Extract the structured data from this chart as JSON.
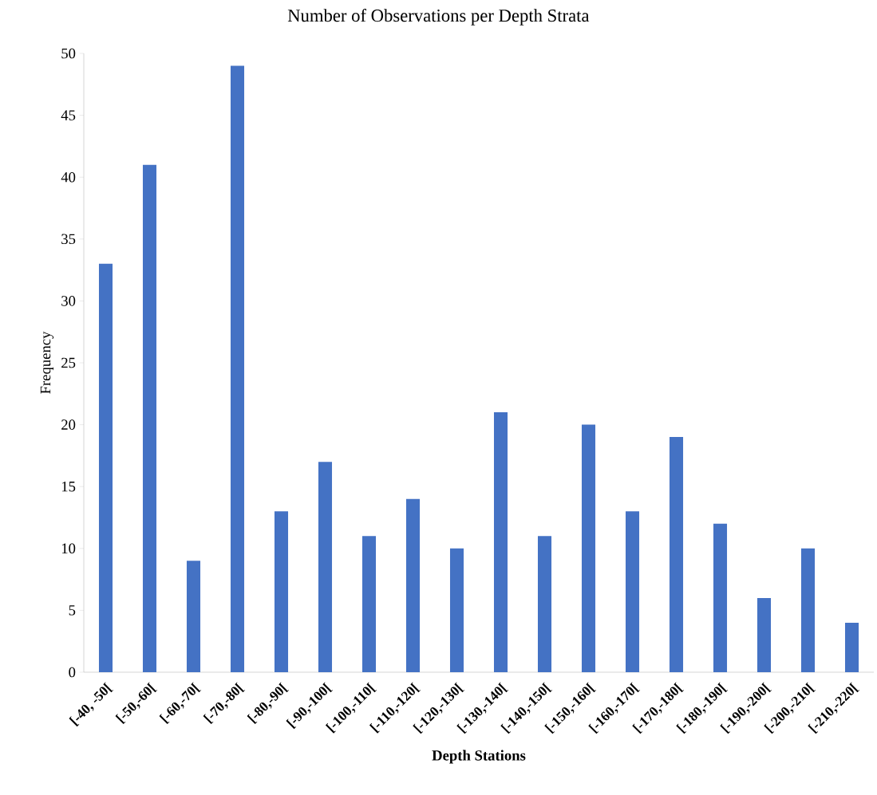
{
  "chart_data": {
    "type": "bar",
    "title": "Number of Observations per Depth Strata",
    "xlabel": "Depth Stations",
    "ylabel": "Frequency",
    "categories": [
      "[-40, -50[",
      "[-50,-60[",
      "[-60,-70[",
      "[-70,-80[",
      "[-80,-90[",
      "[-90,-100[",
      "[-100,-110[",
      "[-110,-120[",
      "[-120,-130[",
      "[-130,-140[",
      "[-140,-150[",
      "[-150,-160[",
      "[-160,-170[",
      "[-170,-180[",
      "[-180,-190[",
      "[-190,-200[",
      "[-200,-210[",
      "[-210,-220["
    ],
    "values": [
      33,
      41,
      9,
      49,
      13,
      17,
      11,
      14,
      10,
      21,
      11,
      20,
      13,
      19,
      12,
      6,
      10,
      4
    ],
    "color": "#4472c4",
    "ylim": [
      0,
      50
    ],
    "yticks": [
      0,
      5,
      10,
      15,
      20,
      25,
      30,
      35,
      40,
      45,
      50
    ]
  }
}
